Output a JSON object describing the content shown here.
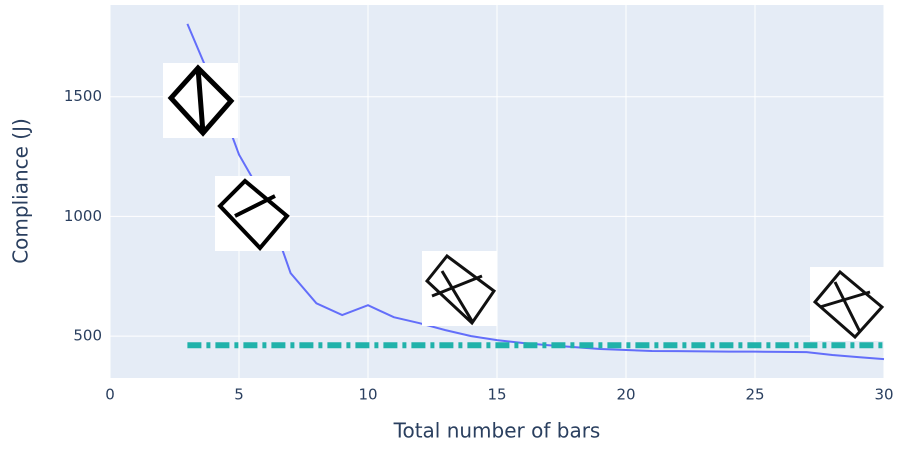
{
  "chart_data": {
    "type": "line",
    "x_label": "Total number of bars",
    "y_label": "Compliance (J)",
    "xlim": [
      0,
      30
    ],
    "ylim": [
      325,
      1883
    ],
    "xticks": [
      0,
      5,
      10,
      15,
      20,
      25,
      30
    ],
    "yticks": [
      500,
      1000,
      1500
    ],
    "grid": true,
    "series": [
      {
        "color": "#636efa",
        "dash": "solid",
        "x": [
          3,
          4,
          5,
          6,
          7,
          8,
          9,
          10,
          11,
          12,
          13,
          14,
          15,
          16,
          17,
          18,
          19,
          20,
          21,
          22,
          23,
          24,
          25,
          26,
          27,
          28,
          29,
          30
        ],
        "values": [
          1804,
          1550,
          1258,
          1070,
          763,
          637,
          588,
          629,
          579,
          554,
          525,
          500,
          483,
          471,
          462,
          454,
          446,
          442,
          438,
          437,
          436,
          435,
          435,
          434,
          433,
          421,
          412,
          404
        ]
      },
      {
        "color": "#20b2aa",
        "dash": "dashdot",
        "x": [
          3,
          30
        ],
        "values": [
          462,
          462
        ]
      }
    ]
  }
}
